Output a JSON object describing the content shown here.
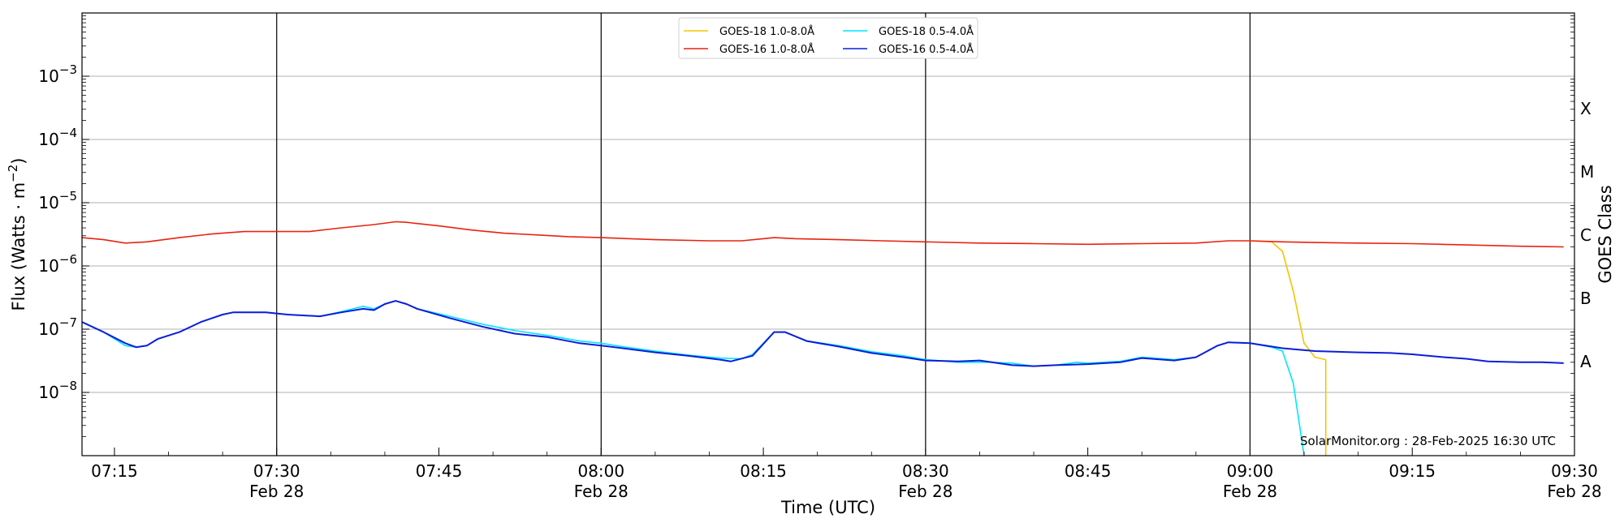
{
  "chart_data": {
    "type": "line",
    "title": "",
    "xlabel": "Time (UTC)",
    "ylabel": "Flux (Watts · m⁻²)",
    "ylabel_parts": {
      "base": "Flux (Watts · m",
      "exp": "−2",
      "close": ")"
    },
    "y_scale": "log",
    "ylim": [
      1e-09,
      0.01
    ],
    "y_tick_labels": [
      {
        "value": 1e-08,
        "base": "10",
        "exp": "−8"
      },
      {
        "value": 1e-07,
        "base": "10",
        "exp": "−7"
      },
      {
        "value": 1e-06,
        "base": "10",
        "exp": "−6"
      },
      {
        "value": 1e-05,
        "base": "10",
        "exp": "−5"
      },
      {
        "value": 0.0001,
        "base": "10",
        "exp": "−4"
      },
      {
        "value": 0.001,
        "base": "10",
        "exp": "−3"
      }
    ],
    "xlim": [
      "07:12",
      "09:30"
    ],
    "x_ticks": [
      {
        "time": "07:15",
        "label": "07:15",
        "sub": ""
      },
      {
        "time": "07:30",
        "label": "07:30",
        "sub": "Feb 28"
      },
      {
        "time": "07:45",
        "label": "07:45",
        "sub": ""
      },
      {
        "time": "08:00",
        "label": "08:00",
        "sub": "Feb 28"
      },
      {
        "time": "08:15",
        "label": "08:15",
        "sub": ""
      },
      {
        "time": "08:30",
        "label": "08:30",
        "sub": "Feb 28"
      },
      {
        "time": "08:45",
        "label": "08:45",
        "sub": ""
      },
      {
        "time": "09:00",
        "label": "09:00",
        "sub": "Feb 28"
      },
      {
        "time": "09:15",
        "label": "09:15",
        "sub": ""
      },
      {
        "time": "09:30",
        "label": "09:30",
        "sub": "Feb 28"
      }
    ],
    "vertical_lines": [
      "07:30",
      "08:00",
      "08:30",
      "09:00"
    ],
    "grid": "horizontal",
    "legend_placement": "top-center",
    "right_axis": {
      "label": "GOES Class",
      "classes": [
        {
          "label": "A",
          "value": 1e-08
        },
        {
          "label": "B",
          "value": 1e-07
        },
        {
          "label": "C",
          "value": 1e-06
        },
        {
          "label": "M",
          "value": 1e-05
        },
        {
          "label": "X",
          "value": 0.0001
        }
      ]
    },
    "annotation": "SolarMonitor.org : 28-Feb-2025 16:30 UTC",
    "series": [
      {
        "name": "GOES-18 1.0-8.0Å",
        "color": "#f5c400",
        "points": [
          [
            "09:00",
            2.5e-06
          ],
          [
            "09:02",
            2.4e-06
          ],
          [
            "09:03",
            1.7e-06
          ],
          [
            "09:04",
            4e-07
          ],
          [
            "09:05",
            6e-08
          ],
          [
            "09:06",
            3.6e-08
          ],
          [
            "09:07",
            3.3e-08
          ],
          [
            "09:07",
            1e-09
          ]
        ]
      },
      {
        "name": "GOES-18 0.5-4.0Å",
        "color": "#00e5ff",
        "points": [
          [
            "07:12",
            1.3e-07
          ],
          [
            "07:14",
            9e-08
          ],
          [
            "07:16",
            5.5e-08
          ],
          [
            "07:17",
            5.2e-08
          ],
          [
            "07:18",
            5.5e-08
          ],
          [
            "07:19",
            7e-08
          ],
          [
            "07:21",
            9e-08
          ],
          [
            "07:23",
            1.3e-07
          ],
          [
            "07:25",
            1.7e-07
          ],
          [
            "07:26",
            1.85e-07
          ],
          [
            "07:29",
            1.85e-07
          ],
          [
            "07:31",
            1.7e-07
          ],
          [
            "07:34",
            1.6e-07
          ],
          [
            "07:36",
            1.9e-07
          ],
          [
            "07:38",
            2.3e-07
          ],
          [
            "07:39",
            2.1e-07
          ],
          [
            "07:40",
            2.5e-07
          ],
          [
            "07:41",
            2.8e-07
          ],
          [
            "07:42",
            2.5e-07
          ],
          [
            "07:43",
            2.1e-07
          ],
          [
            "07:46",
            1.6e-07
          ],
          [
            "07:49",
            1.2e-07
          ],
          [
            "07:52",
            9.5e-08
          ],
          [
            "07:55",
            8e-08
          ],
          [
            "07:58",
            6.5e-08
          ],
          [
            "08:00",
            6e-08
          ],
          [
            "08:02",
            5.3e-08
          ],
          [
            "08:05",
            4.5e-08
          ],
          [
            "08:08",
            3.9e-08
          ],
          [
            "08:11",
            3.5e-08
          ],
          [
            "08:13",
            3.4e-08
          ],
          [
            "08:14",
            4e-08
          ],
          [
            "08:16",
            9e-08
          ],
          [
            "08:17",
            9e-08
          ],
          [
            "08:19",
            6.5e-08
          ],
          [
            "08:22",
            5.5e-08
          ],
          [
            "08:25",
            4.4e-08
          ],
          [
            "08:28",
            3.8e-08
          ],
          [
            "08:30",
            3.3e-08
          ],
          [
            "08:33",
            3e-08
          ],
          [
            "08:36",
            3e-08
          ],
          [
            "08:38",
            2.9e-08
          ],
          [
            "08:40",
            2.6e-08
          ],
          [
            "08:42",
            2.7e-08
          ],
          [
            "08:44",
            3e-08
          ],
          [
            "08:45",
            2.9e-08
          ],
          [
            "08:48",
            3.1e-08
          ],
          [
            "08:50",
            3.6e-08
          ],
          [
            "08:53",
            3.3e-08
          ],
          [
            "08:55",
            3.6e-08
          ],
          [
            "08:57",
            5.5e-08
          ],
          [
            "08:58",
            6.2e-08
          ],
          [
            "09:00",
            6e-08
          ],
          [
            "09:02",
            5.2e-08
          ],
          [
            "09:03",
            4.5e-08
          ],
          [
            "09:04",
            1.4e-08
          ],
          [
            "09:05",
            1e-09
          ]
        ]
      },
      {
        "name": "GOES-16 1.0-8.0Å",
        "color": "#e8230f",
        "points": [
          [
            "07:12",
            2.8e-06
          ],
          [
            "07:14",
            2.6e-06
          ],
          [
            "07:16",
            2.3e-06
          ],
          [
            "07:18",
            2.4e-06
          ],
          [
            "07:21",
            2.8e-06
          ],
          [
            "07:24",
            3.2e-06
          ],
          [
            "07:27",
            3.5e-06
          ],
          [
            "07:30",
            3.5e-06
          ],
          [
            "07:33",
            3.5e-06
          ],
          [
            "07:36",
            4e-06
          ],
          [
            "07:39",
            4.5e-06
          ],
          [
            "07:41",
            5e-06
          ],
          [
            "07:42",
            4.9e-06
          ],
          [
            "07:45",
            4.3e-06
          ],
          [
            "07:48",
            3.7e-06
          ],
          [
            "07:51",
            3.3e-06
          ],
          [
            "07:54",
            3.1e-06
          ],
          [
            "07:57",
            2.9e-06
          ],
          [
            "08:00",
            2.8e-06
          ],
          [
            "08:05",
            2.6e-06
          ],
          [
            "08:10",
            2.5e-06
          ],
          [
            "08:13",
            2.5e-06
          ],
          [
            "08:15",
            2.7e-06
          ],
          [
            "08:16",
            2.8e-06
          ],
          [
            "08:18",
            2.7e-06
          ],
          [
            "08:22",
            2.6e-06
          ],
          [
            "08:26",
            2.5e-06
          ],
          [
            "08:30",
            2.4e-06
          ],
          [
            "08:35",
            2.3e-06
          ],
          [
            "08:40",
            2.25e-06
          ],
          [
            "08:45",
            2.2e-06
          ],
          [
            "08:50",
            2.25e-06
          ],
          [
            "08:55",
            2.3e-06
          ],
          [
            "08:58",
            2.5e-06
          ],
          [
            "09:00",
            2.5e-06
          ],
          [
            "09:03",
            2.4e-06
          ],
          [
            "09:06",
            2.35e-06
          ],
          [
            "09:10",
            2.3e-06
          ],
          [
            "09:15",
            2.25e-06
          ],
          [
            "09:20",
            2.15e-06
          ],
          [
            "09:25",
            2.05e-06
          ],
          [
            "09:29",
            2e-06
          ]
        ]
      },
      {
        "name": "GOES-16 0.5-4.0Å",
        "color": "#0a1ed8",
        "points": [
          [
            "07:12",
            1.3e-07
          ],
          [
            "07:14",
            9e-08
          ],
          [
            "07:16",
            6e-08
          ],
          [
            "07:17",
            5.2e-08
          ],
          [
            "07:18",
            5.5e-08
          ],
          [
            "07:19",
            7e-08
          ],
          [
            "07:21",
            9e-08
          ],
          [
            "07:23",
            1.3e-07
          ],
          [
            "07:25",
            1.7e-07
          ],
          [
            "07:26",
            1.85e-07
          ],
          [
            "07:29",
            1.85e-07
          ],
          [
            "07:31",
            1.7e-07
          ],
          [
            "07:34",
            1.6e-07
          ],
          [
            "07:36",
            1.85e-07
          ],
          [
            "07:38",
            2.1e-07
          ],
          [
            "07:39",
            2e-07
          ],
          [
            "07:40",
            2.5e-07
          ],
          [
            "07:41",
            2.8e-07
          ],
          [
            "07:42",
            2.5e-07
          ],
          [
            "07:43",
            2.1e-07
          ],
          [
            "07:46",
            1.5e-07
          ],
          [
            "07:49",
            1.1e-07
          ],
          [
            "07:52",
            8.5e-08
          ],
          [
            "07:55",
            7.5e-08
          ],
          [
            "07:58",
            6e-08
          ],
          [
            "08:00",
            5.5e-08
          ],
          [
            "08:02",
            5e-08
          ],
          [
            "08:05",
            4.3e-08
          ],
          [
            "08:08",
            3.8e-08
          ],
          [
            "08:11",
            3.3e-08
          ],
          [
            "08:12",
            3.1e-08
          ],
          [
            "08:14",
            3.8e-08
          ],
          [
            "08:16",
            9e-08
          ],
          [
            "08:17",
            9e-08
          ],
          [
            "08:19",
            6.5e-08
          ],
          [
            "08:22",
            5.3e-08
          ],
          [
            "08:25",
            4.2e-08
          ],
          [
            "08:28",
            3.6e-08
          ],
          [
            "08:30",
            3.2e-08
          ],
          [
            "08:33",
            3.1e-08
          ],
          [
            "08:35",
            3.2e-08
          ],
          [
            "08:38",
            2.7e-08
          ],
          [
            "08:40",
            2.6e-08
          ],
          [
            "08:42",
            2.7e-08
          ],
          [
            "08:45",
            2.8e-08
          ],
          [
            "08:48",
            3e-08
          ],
          [
            "08:50",
            3.5e-08
          ],
          [
            "08:53",
            3.2e-08
          ],
          [
            "08:55",
            3.6e-08
          ],
          [
            "08:57",
            5.5e-08
          ],
          [
            "08:58",
            6.2e-08
          ],
          [
            "09:00",
            6e-08
          ],
          [
            "09:03",
            5e-08
          ],
          [
            "09:06",
            4.5e-08
          ],
          [
            "09:10",
            4.3e-08
          ],
          [
            "09:13",
            4.2e-08
          ],
          [
            "09:15",
            4e-08
          ],
          [
            "09:18",
            3.6e-08
          ],
          [
            "09:20",
            3.4e-08
          ],
          [
            "09:22",
            3.1e-08
          ],
          [
            "09:25",
            3e-08
          ],
          [
            "09:27",
            3e-08
          ],
          [
            "09:29",
            2.9e-08
          ]
        ]
      }
    ]
  }
}
